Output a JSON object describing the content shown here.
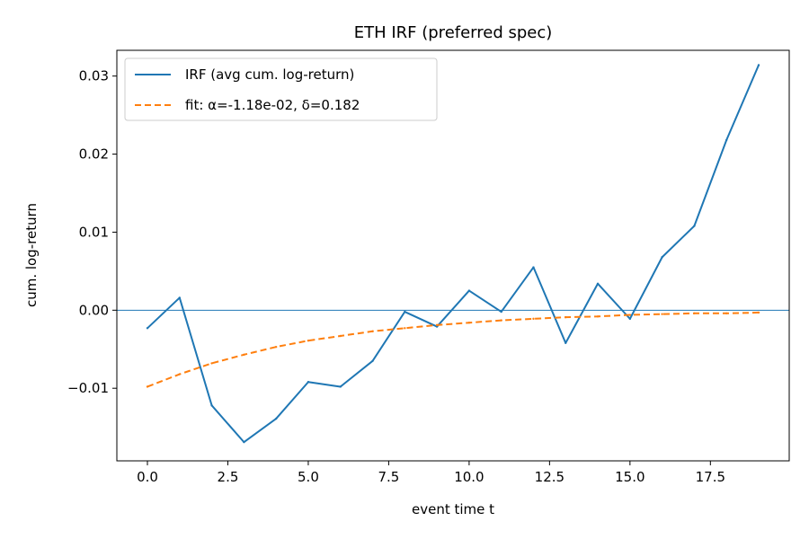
{
  "chart_data": {
    "type": "line",
    "title": "ETH IRF (preferred spec)",
    "xlabel": "event time t",
    "ylabel": "cum. log-return",
    "xlim": [
      -0.95,
      19.95
    ],
    "ylim": [
      -0.0193,
      0.0333
    ],
    "xticks": [
      0.0,
      2.5,
      5.0,
      7.5,
      10.0,
      12.5,
      15.0,
      17.5
    ],
    "xtick_labels": [
      "0.0",
      "2.5",
      "5.0",
      "7.5",
      "10.0",
      "12.5",
      "15.0",
      "17.5"
    ],
    "yticks": [
      -0.01,
      0.0,
      0.01,
      0.02,
      0.03
    ],
    "ytick_labels": [
      "−0.01",
      "0.00",
      "0.01",
      "0.02",
      "0.03"
    ],
    "grid": false,
    "legend_position": "upper-left",
    "reference_line": {
      "y": 0,
      "color": "#1f77b4"
    },
    "x": [
      0,
      1,
      2,
      3,
      4,
      5,
      6,
      7,
      8,
      9,
      10,
      11,
      12,
      13,
      14,
      15,
      16,
      17,
      18,
      19
    ],
    "series": [
      {
        "name": "IRF (avg cum. log-return)",
        "color": "#1f77b4",
        "style": "solid",
        "values": [
          -0.0023,
          0.0016,
          -0.0122,
          -0.0169,
          -0.0139,
          -0.0092,
          -0.0098,
          -0.0065,
          -0.0002,
          -0.0021,
          0.0025,
          -0.0002,
          0.0055,
          -0.0042,
          0.0034,
          -0.0011,
          0.0068,
          0.0108,
          0.0218,
          0.0314
        ]
      },
      {
        "name": "fit: α=-1.18e-02, δ=0.182",
        "color": "#ff7f0e",
        "style": "dashed",
        "values": [
          -0.0098,
          -0.0082,
          -0.0068,
          -0.0057,
          -0.0047,
          -0.0039,
          -0.0033,
          -0.0027,
          -0.0023,
          -0.0019,
          -0.0016,
          -0.0013,
          -0.0011,
          -0.0009,
          -0.0008,
          -0.0006,
          -0.0005,
          -0.0004,
          -0.0004,
          -0.0003
        ]
      }
    ]
  }
}
